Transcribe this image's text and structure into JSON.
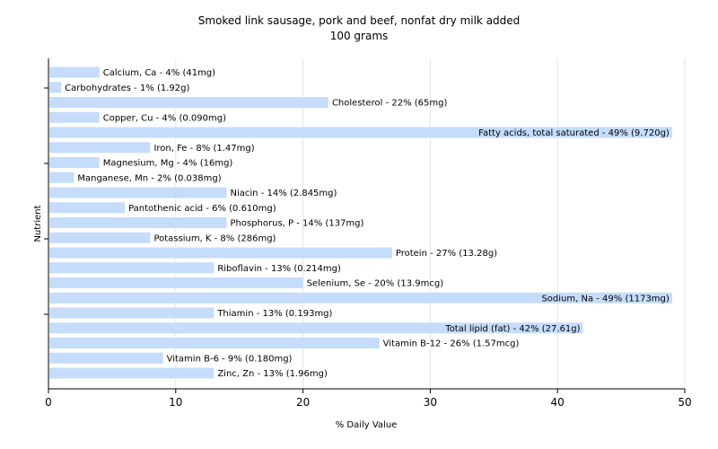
{
  "chart_data": {
    "type": "bar",
    "orientation": "horizontal",
    "title": "Smoked link sausage, pork and beef, nonfat dry milk added",
    "subtitle": "100 grams",
    "xlabel": "% Daily Value",
    "ylabel": "Nutrient",
    "xlim": [
      0,
      50
    ],
    "xticks": [
      0,
      10,
      20,
      30,
      40,
      50
    ],
    "grid": true,
    "bar_color": "#c5dcfb",
    "categories": [
      "Calcium, Ca",
      "Carbohydrates",
      "Cholesterol",
      "Copper, Cu",
      "Fatty acids, total saturated",
      "Iron, Fe",
      "Magnesium, Mg",
      "Manganese, Mn",
      "Niacin",
      "Pantothenic acid",
      "Phosphorus, P",
      "Potassium, K",
      "Protein",
      "Riboflavin",
      "Selenium, Se",
      "Sodium, Na",
      "Thiamin",
      "Total lipid (fat)",
      "Vitamin B-12",
      "Vitamin B-6",
      "Zinc, Zn"
    ],
    "values": [
      4,
      1,
      22,
      4,
      49,
      8,
      4,
      2,
      14,
      6,
      14,
      8,
      27,
      13,
      20,
      49,
      13,
      42,
      26,
      9,
      13
    ],
    "labels": [
      "Calcium, Ca - 4% (41mg)",
      "Carbohydrates - 1% (1.92g)",
      "Cholesterol - 22% (65mg)",
      "Copper, Cu - 4% (0.090mg)",
      "Fatty acids, total saturated - 49% (9.720g)",
      "Iron, Fe - 8% (1.47mg)",
      "Magnesium, Mg - 4% (16mg)",
      "Manganese, Mn - 2% (0.038mg)",
      "Niacin - 14% (2.845mg)",
      "Pantothenic acid - 6% (0.610mg)",
      "Phosphorus, P - 14% (137mg)",
      "Potassium, K - 8% (286mg)",
      "Protein - 27% (13.28g)",
      "Riboflavin - 13% (0.214mg)",
      "Selenium, Se - 20% (13.9mcg)",
      "Sodium, Na - 49% (1173mg)",
      "Thiamin - 13% (0.193mg)",
      "Total lipid (fat) - 42% (27.61g)",
      "Vitamin B-12 - 26% (1.57mcg)",
      "Vitamin B-6 - 9% (0.180mg)",
      "Zinc, Zn - 13% (1.96mg)"
    ]
  }
}
